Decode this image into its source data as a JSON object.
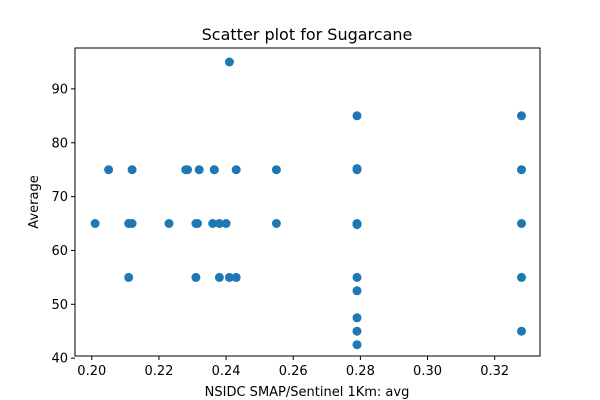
{
  "chart_data": {
    "type": "scatter",
    "title": "Scatter plot for Sugarcane",
    "xlabel": "NSIDC SMAP/Sentinel 1Km: avg",
    "ylabel": "Average",
    "xlim": [
      0.195,
      0.3335
    ],
    "ylim": [
      40.4,
      97.6
    ],
    "xticks": [
      0.2,
      0.22,
      0.24,
      0.26,
      0.28,
      0.3,
      0.32
    ],
    "xtick_labels": [
      "0.20",
      "0.22",
      "0.24",
      "0.26",
      "0.28",
      "0.30",
      "0.32"
    ],
    "yticks": [
      40,
      50,
      60,
      70,
      80,
      90
    ],
    "ytick_labels": [
      "40",
      "50",
      "60",
      "70",
      "80",
      "90"
    ],
    "grid": false,
    "marker_color": "#1f77b4",
    "series": [
      {
        "name": "Sugarcane",
        "x": [
          0.201,
          0.205,
          0.211,
          0.211,
          0.212,
          0.212,
          0.223,
          0.228,
          0.2285,
          0.231,
          0.231,
          0.2315,
          0.232,
          0.236,
          0.2365,
          0.2365,
          0.238,
          0.238,
          0.24,
          0.241,
          0.241,
          0.243,
          0.243,
          0.255,
          0.255,
          0.279,
          0.279,
          0.279,
          0.279,
          0.279,
          0.279,
          0.279,
          0.279,
          0.279,
          0.279,
          0.328,
          0.328,
          0.328,
          0.328,
          0.328
        ],
        "y": [
          65,
          75,
          65,
          55,
          75,
          65,
          65,
          75,
          75,
          55,
          65,
          65,
          75,
          65,
          75,
          75,
          65,
          55,
          65,
          95,
          55,
          75,
          55,
          75,
          65,
          85,
          75,
          65,
          55,
          52.5,
          47.5,
          45,
          42.5,
          64.8,
          75.2,
          85,
          75,
          65,
          55,
          45
        ]
      }
    ]
  }
}
